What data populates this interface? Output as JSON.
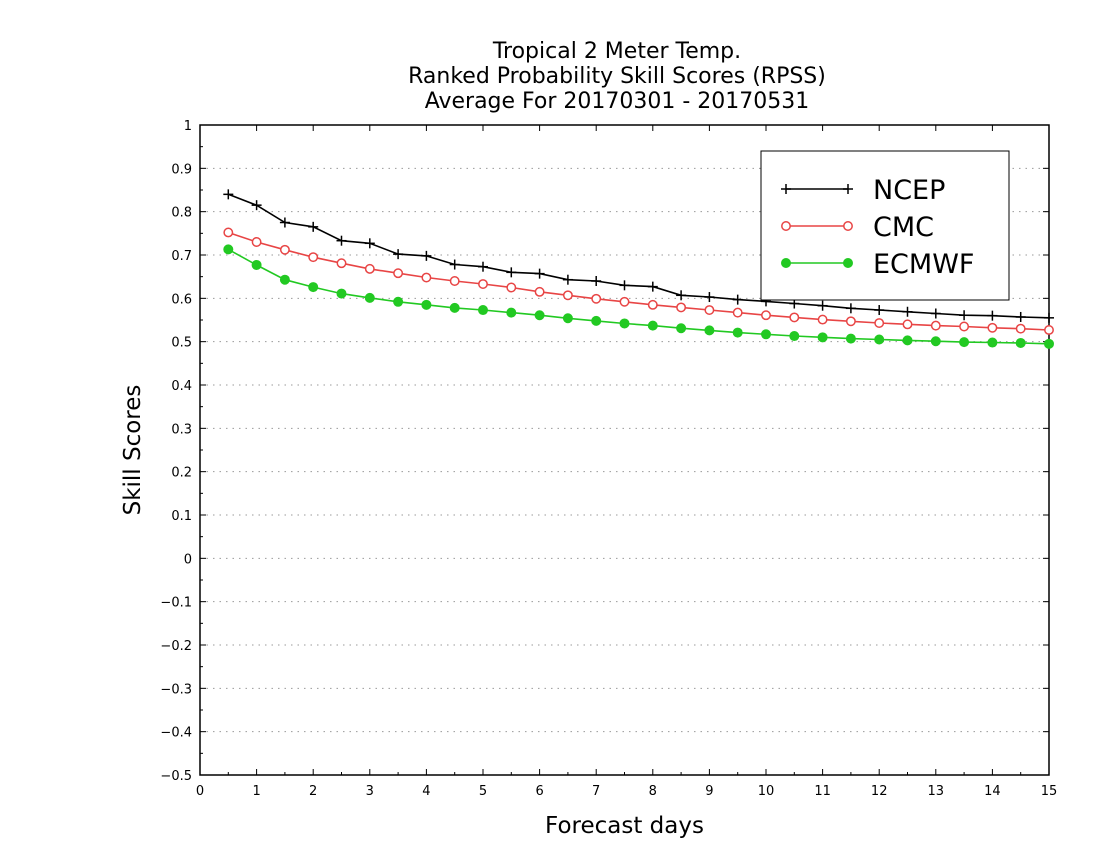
{
  "chart_data": {
    "type": "line",
    "title": [
      "Tropical 2 Meter Temp.",
      "Ranked Probability Skill Scores (RPSS)",
      "Average For 20170301 - 20170531"
    ],
    "xlabel": "Forecast days",
    "ylabel": "Skill Scores",
    "xlim": [
      0,
      15
    ],
    "ylim": [
      -0.5,
      1
    ],
    "xticks": [
      "0",
      "1",
      "2",
      "3",
      "4",
      "5",
      "6",
      "7",
      "8",
      "9",
      "10",
      "11",
      "12",
      "13",
      "14",
      "15"
    ],
    "yticks": [
      "−0.5",
      "−0.4",
      "−0.3",
      "−0.2",
      "−0.1",
      "0",
      "0.1",
      "0.2",
      "0.3",
      "0.4",
      "0.5",
      "0.6",
      "0.7",
      "0.8",
      "0.9",
      "1"
    ],
    "grid": "horizontal-dotted",
    "legend_position": "top-right",
    "x": [
      0.5,
      1,
      1.5,
      2,
      2.5,
      3,
      3.5,
      4,
      4.5,
      5,
      5.5,
      6,
      6.5,
      7,
      7.5,
      8,
      8.5,
      9,
      9.5,
      10,
      10.5,
      11,
      11.5,
      12,
      12.5,
      13,
      13.5,
      14,
      14.5,
      15
    ],
    "series": [
      {
        "name": "NCEP",
        "color": "#000000",
        "marker": "plus",
        "values": [
          0.84,
          0.815,
          0.775,
          0.765,
          0.733,
          0.727,
          0.702,
          0.698,
          0.678,
          0.673,
          0.66,
          0.657,
          0.643,
          0.64,
          0.63,
          0.627,
          0.607,
          0.603,
          0.597,
          0.593,
          0.588,
          0.583,
          0.577,
          0.573,
          0.569,
          0.565,
          0.561,
          0.56,
          0.557,
          0.555
        ]
      },
      {
        "name": "CMC",
        "color": "#e84545",
        "marker": "open-circle",
        "values": [
          0.752,
          0.73,
          0.712,
          0.695,
          0.681,
          0.668,
          0.658,
          0.648,
          0.64,
          0.633,
          0.625,
          0.615,
          0.607,
          0.599,
          0.592,
          0.585,
          0.579,
          0.573,
          0.567,
          0.561,
          0.556,
          0.551,
          0.547,
          0.543,
          0.54,
          0.537,
          0.535,
          0.532,
          0.53,
          0.527
        ]
      },
      {
        "name": "ECMWF",
        "color": "#22c922",
        "marker": "filled-circle",
        "values": [
          0.713,
          0.677,
          0.643,
          0.626,
          0.611,
          0.601,
          0.592,
          0.585,
          0.578,
          0.573,
          0.567,
          0.561,
          0.554,
          0.548,
          0.542,
          0.537,
          0.531,
          0.526,
          0.521,
          0.517,
          0.513,
          0.51,
          0.507,
          0.505,
          0.503,
          0.501,
          0.499,
          0.498,
          0.497,
          0.495
        ]
      }
    ]
  }
}
